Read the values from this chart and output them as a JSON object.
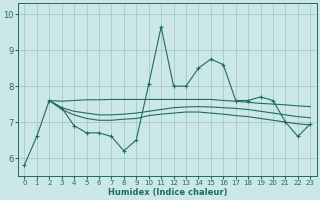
{
  "title": "",
  "xlabel": "Humidex (Indice chaleur)",
  "bg_color": "#cce8e6",
  "grid_color": "#aacfcd",
  "line_color": "#1f6b63",
  "xlim": [
    -0.5,
    23.5
  ],
  "ylim": [
    5.5,
    10.3
  ],
  "yticks": [
    6,
    7,
    8,
    9,
    10
  ],
  "xticks": [
    0,
    1,
    2,
    3,
    4,
    5,
    6,
    7,
    8,
    9,
    10,
    11,
    12,
    13,
    14,
    15,
    16,
    17,
    18,
    19,
    20,
    21,
    22,
    23
  ],
  "s1_x": [
    0,
    1,
    2,
    3,
    4,
    5,
    6,
    7,
    8,
    9,
    10,
    11,
    12,
    13,
    14,
    15,
    16,
    17,
    18,
    19,
    20,
    21,
    22,
    23
  ],
  "s1_y": [
    5.8,
    6.6,
    7.6,
    7.4,
    6.9,
    6.7,
    6.7,
    6.6,
    6.2,
    6.5,
    8.05,
    9.65,
    8.0,
    8.0,
    8.5,
    8.75,
    8.6,
    7.6,
    7.6,
    7.7,
    7.6,
    7.0,
    6.6,
    6.95
  ],
  "s2_x": [
    2,
    3,
    4,
    5,
    6,
    7,
    8,
    9,
    10,
    11,
    12,
    13,
    14,
    15,
    16,
    17,
    18,
    19,
    20,
    21,
    22,
    23
  ],
  "s2_y": [
    7.6,
    7.58,
    7.6,
    7.62,
    7.62,
    7.63,
    7.63,
    7.63,
    7.63,
    7.63,
    7.63,
    7.63,
    7.63,
    7.63,
    7.6,
    7.58,
    7.55,
    7.52,
    7.5,
    7.48,
    7.45,
    7.43
  ],
  "s3_x": [
    2,
    3,
    4,
    5,
    6,
    7,
    8,
    9,
    10,
    11,
    12,
    13,
    14,
    15,
    16,
    17,
    18,
    19,
    20,
    21,
    22,
    23
  ],
  "s3_y": [
    7.6,
    7.4,
    7.3,
    7.25,
    7.2,
    7.2,
    7.22,
    7.25,
    7.3,
    7.35,
    7.4,
    7.42,
    7.43,
    7.42,
    7.4,
    7.38,
    7.35,
    7.3,
    7.25,
    7.2,
    7.15,
    7.12
  ],
  "s4_x": [
    2,
    3,
    4,
    5,
    6,
    7,
    8,
    9,
    10,
    11,
    12,
    13,
    14,
    15,
    16,
    17,
    18,
    19,
    20,
    21,
    22,
    23
  ],
  "s4_y": [
    7.6,
    7.35,
    7.2,
    7.1,
    7.05,
    7.05,
    7.08,
    7.1,
    7.18,
    7.22,
    7.25,
    7.28,
    7.28,
    7.25,
    7.22,
    7.18,
    7.15,
    7.1,
    7.05,
    7.0,
    6.95,
    6.92
  ]
}
